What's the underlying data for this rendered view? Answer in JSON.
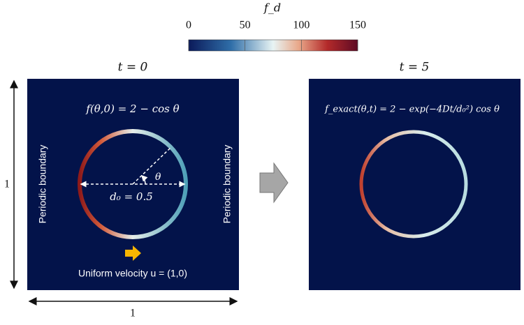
{
  "colorbar": {
    "label": "f_d",
    "range": [
      0,
      150
    ],
    "ticks": [
      0,
      50,
      100,
      150
    ]
  },
  "left_panel": {
    "title": "t = 0",
    "formula": "f(θ,0) = 2 − cos θ",
    "boundary_left": "Periodic boundary",
    "boundary_right": "Periodic boundary",
    "diameter": "d₀ = 0.5",
    "angle": "θ",
    "velocity": "Uniform velocity u = (1,0)"
  },
  "right_panel": {
    "title": "t = 5",
    "formula": "f_exact(θ,t) = 2 − exp(−4Dt/d₀²) cos θ"
  },
  "dimensions": {
    "height": "1",
    "width": "1"
  }
}
